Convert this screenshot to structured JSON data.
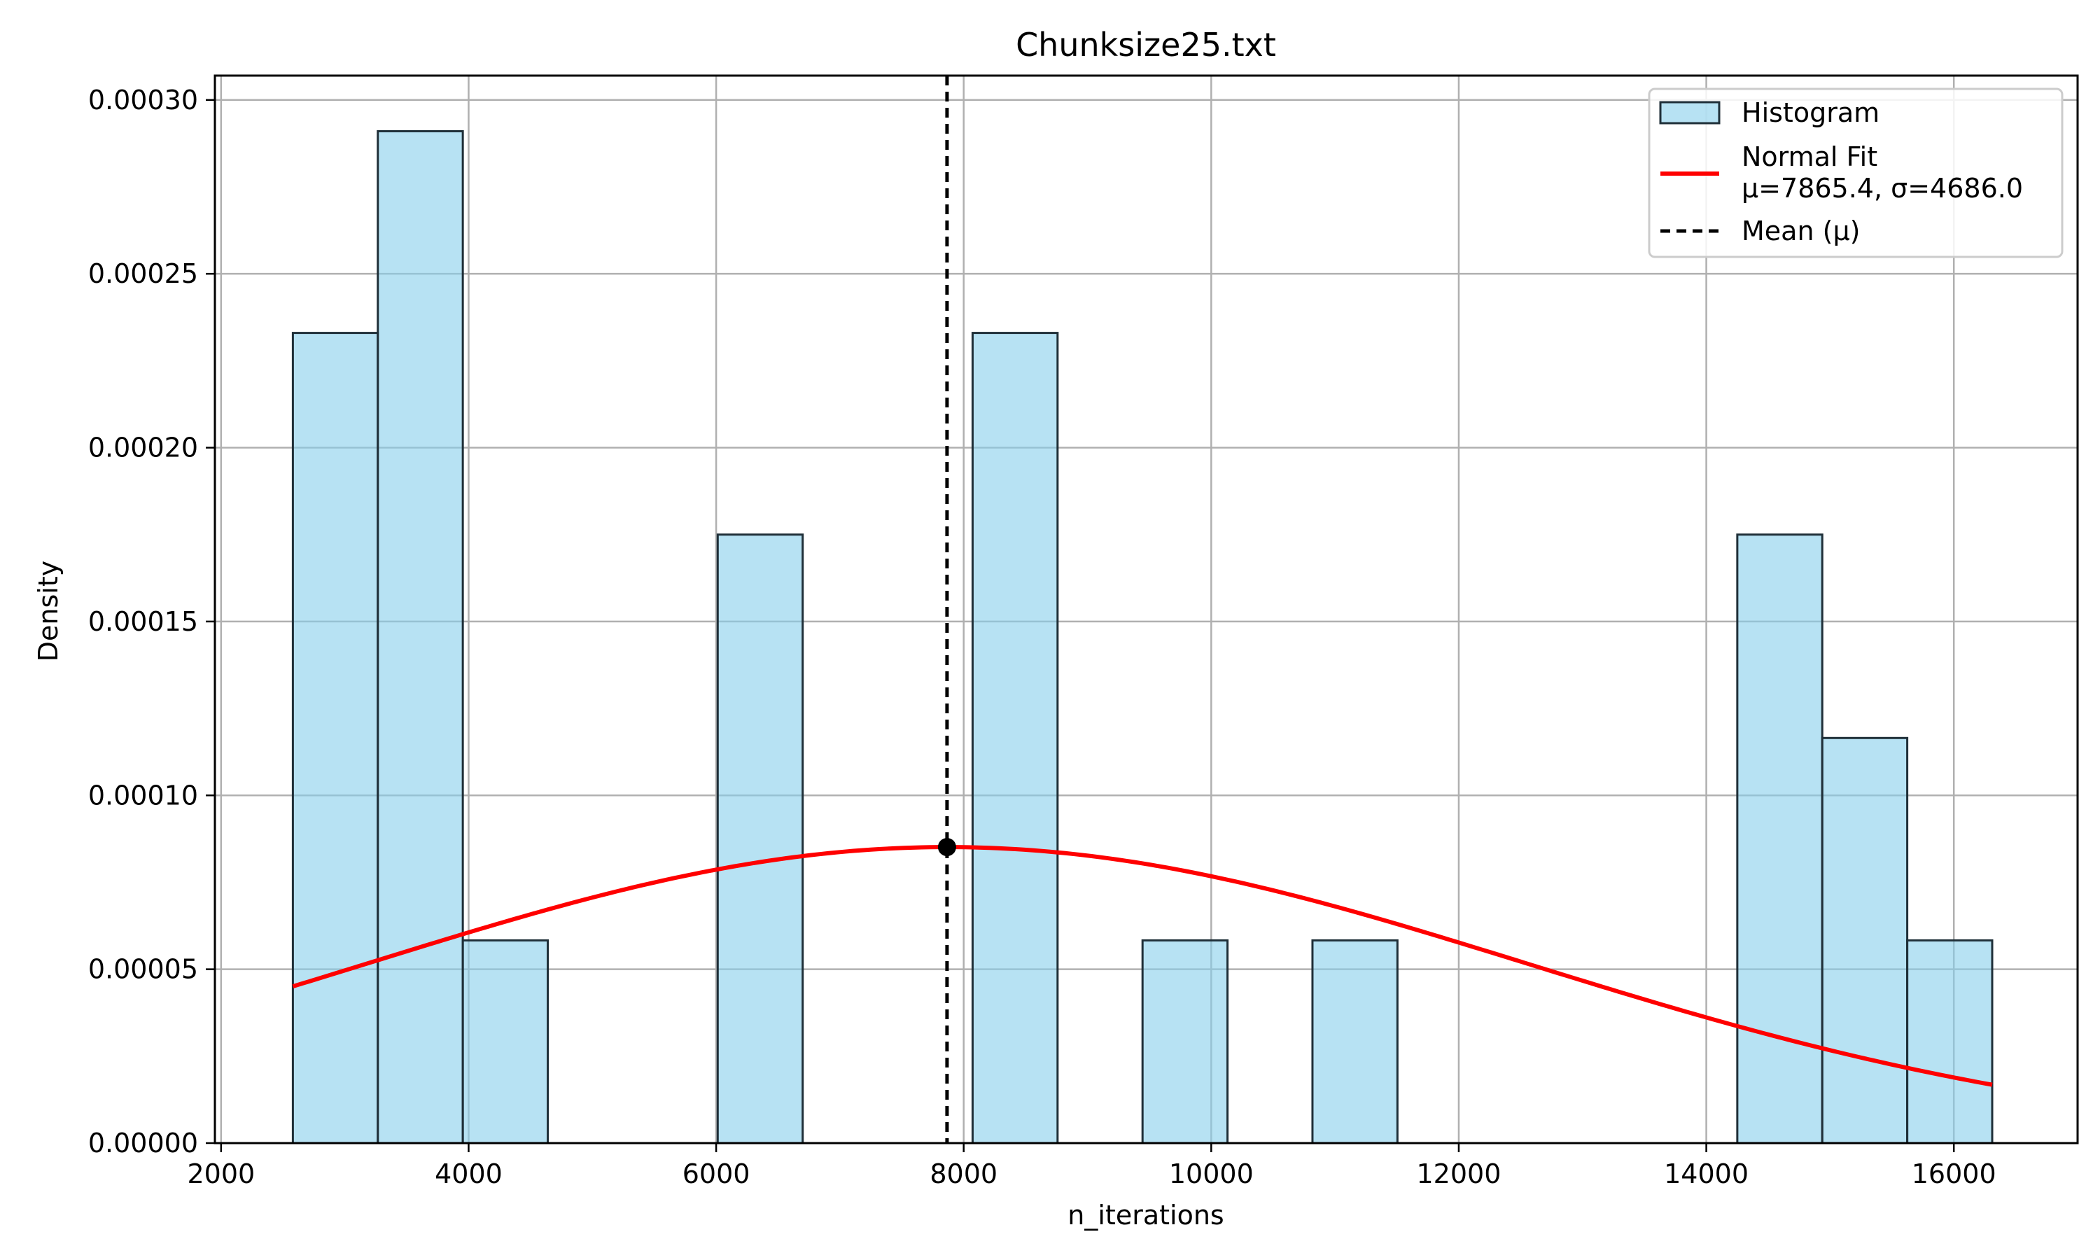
{
  "chart_data": {
    "type": "bar",
    "title": "Chunksize25.txt",
    "xlabel": "n_iterations",
    "ylabel": "Density",
    "xlim": [
      1950,
      17000
    ],
    "ylim": [
      0,
      0.000307
    ],
    "xticks": [
      2000,
      4000,
      6000,
      8000,
      10000,
      12000,
      14000,
      16000
    ],
    "xtick_labels": [
      "2000",
      "4000",
      "6000",
      "8000",
      "10000",
      "12000",
      "14000",
      "16000"
    ],
    "yticks": [
      0,
      5e-05,
      0.0001,
      0.00015,
      0.0002,
      0.00025,
      0.0003
    ],
    "ytick_labels": [
      "0.00000",
      "0.00005",
      "0.00010",
      "0.00015",
      "0.00020",
      "0.00025",
      "0.00030"
    ],
    "grid": true,
    "legend_position": "top-right",
    "histogram": {
      "name": "Histogram",
      "bin_edges": [
        2580,
        3266.5,
        3953,
        4639.5,
        5326,
        6012.5,
        6699,
        7385.5,
        8072,
        8758.5,
        9445,
        10131.5,
        10818,
        11504.5,
        12191,
        12877.5,
        13564,
        14250.5,
        14937,
        15623.5,
        16310
      ],
      "densities": [
        0.000233,
        0.000291,
        5.83e-05,
        0,
        0,
        0.000175,
        0,
        0,
        0.000233,
        0,
        5.83e-05,
        0,
        5.83e-05,
        0,
        0,
        0,
        0,
        0.000175,
        0.0001165,
        5.83e-05
      ],
      "fill": "#87ceeb",
      "edge": "#1f2f38"
    },
    "normal_fit": {
      "name_line1": "Normal Fit",
      "name_line2": "μ=7865.4, σ=4686.0",
      "mu": 7865.4,
      "sigma": 4686.0,
      "x_range": [
        2580,
        16310
      ],
      "color": "#ff0000"
    },
    "mean_line": {
      "name": "Mean (μ)",
      "x": 7865.4,
      "color": "#000000"
    }
  }
}
